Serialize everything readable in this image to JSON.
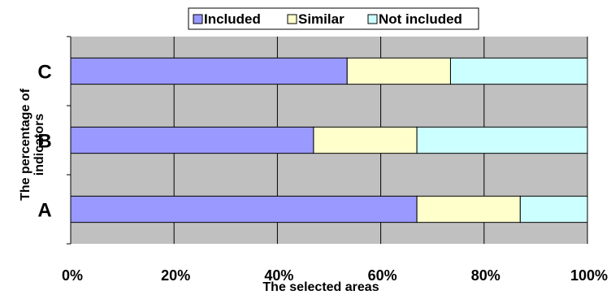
{
  "chart_data": {
    "type": "bar",
    "orientation": "horizontal",
    "stacked": "percent",
    "categories": [
      "A",
      "B",
      "C"
    ],
    "series": [
      {
        "name": "Included",
        "values": [
          67,
          47,
          53.5
        ],
        "color": "#9999ff"
      },
      {
        "name": "Similar",
        "values": [
          20,
          20,
          20
        ],
        "color": "#ffffcc"
      },
      {
        "name": "Not included",
        "values": [
          13,
          33,
          26.5
        ],
        "color": "#ccffff"
      }
    ],
    "x_ticks": [
      "0%",
      "20%",
      "40%",
      "60%",
      "80%",
      "100%"
    ],
    "xlim": [
      0,
      100
    ],
    "xlabel": "The selected areas",
    "ylabel": "The percentage of indicators",
    "grid": true,
    "legend_position": "top",
    "plot_background": "#c0c0c0"
  }
}
